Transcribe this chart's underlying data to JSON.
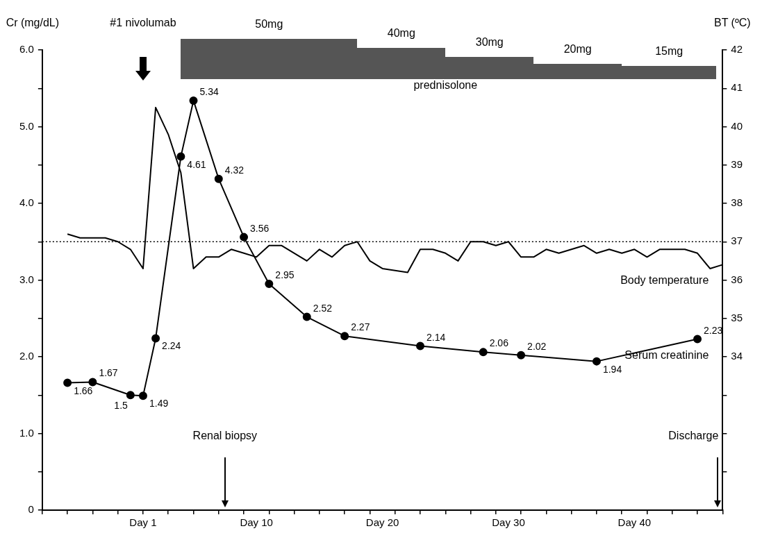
{
  "chart_data": {
    "type": "line",
    "categories": [
      null,
      null,
      null,
      null,
      null,
      null,
      null,
      null,
      "Day 1",
      null,
      null,
      null,
      null,
      null,
      null,
      null,
      null,
      "Day 10",
      null,
      null,
      null,
      null,
      null,
      null,
      null,
      null,
      null,
      "Day 20",
      null,
      null,
      null,
      null,
      null,
      null,
      null,
      null,
      null,
      "Day 30",
      null,
      null,
      null,
      null,
      null,
      null,
      null,
      null,
      null,
      "Day 40",
      null,
      null,
      null,
      null,
      null,
      null,
      null
    ],
    "ylabel": "Cr (mg/dL)",
    "y2label": "BT (ºC)",
    "ylim": [
      0,
      6
    ],
    "yticks": [
      0,
      {
        "value": 0.5,
        "label": null
      },
      {
        "value": 1,
        "label": "1.0"
      },
      {
        "value": 1.5,
        "label": null
      },
      {
        "value": 2,
        "label": "2.0"
      },
      {
        "value": 2.5,
        "label": null
      },
      {
        "value": 3,
        "label": "3.0"
      },
      {
        "value": 3.5,
        "label": null
      },
      {
        "value": 4,
        "label": "4.0"
      },
      {
        "value": 4.5,
        "label": null
      },
      {
        "value": 5,
        "label": "5.0"
      },
      {
        "value": 5.5,
        "label": null
      },
      {
        "value": 6,
        "label": "6.0"
      }
    ],
    "y2lim": [
      30,
      42
    ],
    "y2ticks": [
      {
        "value": 31,
        "label": null
      },
      {
        "value": 32,
        "label": null
      },
      {
        "value": 33,
        "label": null
      },
      34,
      35,
      36,
      37,
      38,
      39,
      40,
      41,
      42
    ],
    "series": [
      {
        "name": "Body temperature",
        "axis": "y2",
        "color": "#000000",
        "marker": "none",
        "line_style": "solid",
        "values": [
          null,
          null,
          37.2,
          37.1,
          37.1,
          37.1,
          37.0,
          36.8,
          36.3,
          40.5,
          39.8,
          38.8,
          36.3,
          36.6,
          36.6,
          36.8,
          36.7,
          36.6,
          36.9,
          36.9,
          36.7,
          36.5,
          36.8,
          36.6,
          36.9,
          37.0,
          36.5,
          36.3,
          null,
          36.2,
          36.8,
          36.8,
          36.7,
          36.5,
          37.0,
          37.0,
          36.9,
          37.0,
          36.6,
          36.6,
          36.8,
          36.7,
          36.8,
          36.9,
          36.7,
          36.8,
          36.7,
          36.8,
          36.6,
          36.8,
          36.8,
          36.8,
          36.7,
          36.3,
          36.4
        ]
      },
      {
        "name": "Serum creatinine",
        "axis": "y",
        "color": "#000000",
        "marker": "circle",
        "line_style": "solid",
        "values": [
          null,
          null,
          1.66,
          null,
          1.67,
          null,
          null,
          1.5,
          1.49,
          2.24,
          null,
          4.61,
          5.34,
          null,
          4.32,
          null,
          3.56,
          null,
          2.95,
          null,
          null,
          2.52,
          null,
          null,
          2.27,
          null,
          null,
          null,
          null,
          null,
          2.14,
          null,
          null,
          null,
          null,
          2.06,
          null,
          null,
          2.02,
          null,
          null,
          null,
          null,
          null,
          1.94,
          null,
          null,
          null,
          null,
          null,
          null,
          null,
          2.23,
          null,
          null
        ],
        "value_labels": [
          null,
          null,
          "1.66",
          null,
          "1.67",
          null,
          null,
          "1.5",
          "1.49",
          "2.24",
          null,
          "4.61",
          "5.34",
          null,
          "4.32",
          null,
          "3.56",
          null,
          "2.95",
          null,
          null,
          "2.52",
          null,
          null,
          "2.27",
          null,
          null,
          null,
          null,
          null,
          "2.14",
          null,
          null,
          null,
          null,
          "2.06",
          null,
          null,
          "2.02",
          null,
          null,
          null,
          null,
          null,
          "1.94",
          null,
          null,
          null,
          null,
          null,
          null,
          null,
          "2.23",
          null,
          null
        ]
      }
    ],
    "ref_lines": [
      {
        "axis": "y2",
        "value": 37,
        "line_style": "dotted",
        "color": "#000000"
      }
    ],
    "annotations": [
      "#1 nivolumab",
      "50mg",
      "40mg",
      "30mg",
      "20mg",
      "15mg",
      "prednisolone",
      "Renal biopsy",
      "Discharge"
    ],
    "legend": false,
    "grid": false
  }
}
